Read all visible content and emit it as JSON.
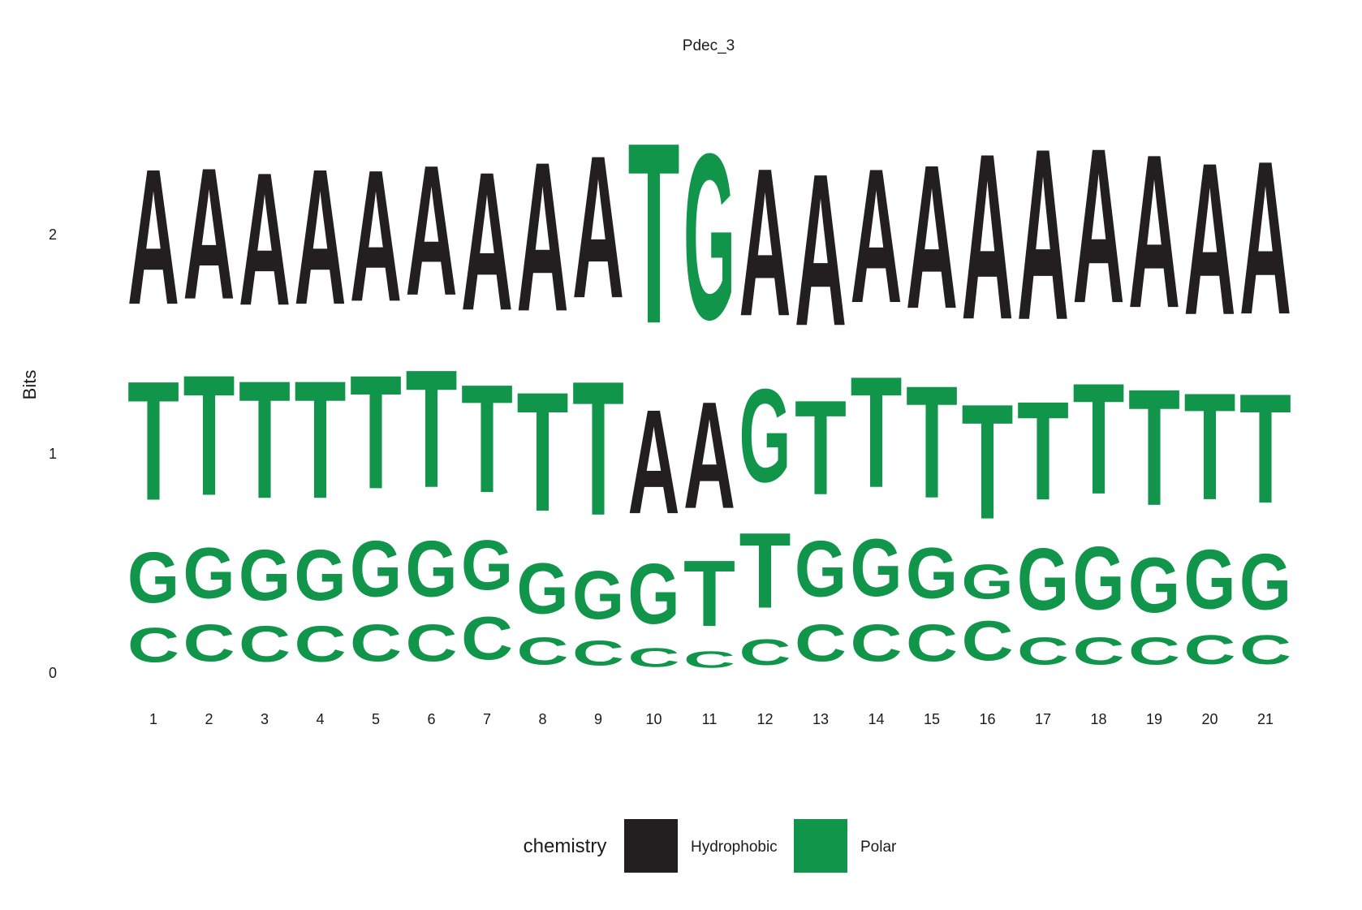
{
  "chart_data": {
    "type": "sequence-logo",
    "title": "Pdec_3",
    "ylabel": "Bits",
    "xlabel": "",
    "yticks": [
      0,
      1,
      2
    ],
    "ylim": [
      0,
      2.6
    ],
    "legend": {
      "title": "chemistry",
      "placement": "bottom",
      "entries": [
        {
          "name": "Hydrophobic",
          "color": "#231f20"
        },
        {
          "name": "Polar",
          "color": "#10954a"
        }
      ]
    },
    "letter_colors": {
      "A": "#231f20",
      "T": "#10954a",
      "G": "#10954a",
      "C": "#10954a"
    },
    "positions": [
      {
        "pos": "1",
        "stack": [
          {
            "letter": "C",
            "bits": 0.25
          },
          {
            "letter": "G",
            "bits": 0.37
          },
          {
            "letter": "T",
            "bits": 0.87
          },
          {
            "letter": "A",
            "bits": 0.99
          }
        ]
      },
      {
        "pos": "2",
        "stack": [
          {
            "letter": "C",
            "bits": 0.27
          },
          {
            "letter": "G",
            "bits": 0.37
          },
          {
            "letter": "T",
            "bits": 0.88
          },
          {
            "letter": "A",
            "bits": 0.96
          }
        ]
      },
      {
        "pos": "3",
        "stack": [
          {
            "letter": "C",
            "bits": 0.26
          },
          {
            "letter": "G",
            "bits": 0.37
          },
          {
            "letter": "T",
            "bits": 0.86
          },
          {
            "letter": "A",
            "bits": 0.97
          }
        ]
      },
      {
        "pos": "4",
        "stack": [
          {
            "letter": "C",
            "bits": 0.26
          },
          {
            "letter": "G",
            "bits": 0.37
          },
          {
            "letter": "T",
            "bits": 0.86
          },
          {
            "letter": "A",
            "bits": 0.99
          }
        ]
      },
      {
        "pos": "5",
        "stack": [
          {
            "letter": "C",
            "bits": 0.27
          },
          {
            "letter": "G",
            "bits": 0.41
          },
          {
            "letter": "T",
            "bits": 0.83
          },
          {
            "letter": "A",
            "bits": 0.96
          }
        ]
      },
      {
        "pos": "6",
        "stack": [
          {
            "letter": "C",
            "bits": 0.27
          },
          {
            "letter": "G",
            "bits": 0.41
          },
          {
            "letter": "T",
            "bits": 0.86
          },
          {
            "letter": "A",
            "bits": 0.95
          }
        ]
      },
      {
        "pos": "7",
        "stack": [
          {
            "letter": "C",
            "bits": 0.31
          },
          {
            "letter": "G",
            "bits": 0.36
          },
          {
            "letter": "T",
            "bits": 0.79
          },
          {
            "letter": "A",
            "bits": 1.01
          }
        ]
      },
      {
        "pos": "8",
        "stack": [
          {
            "letter": "C",
            "bits": 0.2
          },
          {
            "letter": "G",
            "bits": 0.37
          },
          {
            "letter": "T",
            "bits": 0.87
          },
          {
            "letter": "A",
            "bits": 1.09
          }
        ]
      },
      {
        "pos": "9",
        "stack": [
          {
            "letter": "C",
            "bits": 0.18
          },
          {
            "letter": "G",
            "bits": 0.35
          },
          {
            "letter": "T",
            "bits": 0.98
          },
          {
            "letter": "A",
            "bits": 1.04
          }
        ]
      },
      {
        "pos": "10",
        "stack": [
          {
            "letter": "C",
            "bits": 0.14
          },
          {
            "letter": "G",
            "bits": 0.44
          },
          {
            "letter": "A",
            "bits": 0.76
          },
          {
            "letter": "T",
            "bits": 1.32
          }
        ]
      },
      {
        "pos": "11",
        "stack": [
          {
            "letter": "C",
            "bits": 0.12
          },
          {
            "letter": "T",
            "bits": 0.48
          },
          {
            "letter": "A",
            "bits": 0.78
          },
          {
            "letter": "G",
            "bits": 1.21
          }
        ]
      },
      {
        "pos": "12",
        "stack": [
          {
            "letter": "C",
            "bits": 0.19
          },
          {
            "letter": "T",
            "bits": 0.55
          },
          {
            "letter": "G",
            "bits": 0.68
          },
          {
            "letter": "A",
            "bits": 1.08
          }
        ]
      },
      {
        "pos": "13",
        "stack": [
          {
            "letter": "C",
            "bits": 0.27
          },
          {
            "letter": "G",
            "bits": 0.41
          },
          {
            "letter": "T",
            "bits": 0.69
          },
          {
            "letter": "A",
            "bits": 1.11
          }
        ]
      },
      {
        "pos": "14",
        "stack": [
          {
            "letter": "C",
            "bits": 0.27
          },
          {
            "letter": "G",
            "bits": 0.42
          },
          {
            "letter": "T",
            "bits": 0.81
          },
          {
            "letter": "A",
            "bits": 0.98
          }
        ]
      },
      {
        "pos": "15",
        "stack": [
          {
            "letter": "C",
            "bits": 0.27
          },
          {
            "letter": "G",
            "bits": 0.37
          },
          {
            "letter": "T",
            "bits": 0.82
          },
          {
            "letter": "A",
            "bits": 1.05
          }
        ]
      },
      {
        "pos": "16",
        "stack": [
          {
            "letter": "C",
            "bits": 0.29
          },
          {
            "letter": "G",
            "bits": 0.25
          },
          {
            "letter": "T",
            "bits": 0.84
          },
          {
            "letter": "A",
            "bits": 1.21
          }
        ]
      },
      {
        "pos": "17",
        "stack": [
          {
            "letter": "C",
            "bits": 0.2
          },
          {
            "letter": "G",
            "bits": 0.45
          },
          {
            "letter": "T",
            "bits": 0.72
          },
          {
            "letter": "A",
            "bits": 1.25
          }
        ]
      },
      {
        "pos": "18",
        "stack": [
          {
            "letter": "C",
            "bits": 0.2
          },
          {
            "letter": "G",
            "bits": 0.46
          },
          {
            "letter": "T",
            "bits": 0.81
          },
          {
            "letter": "A",
            "bits": 1.13
          }
        ]
      },
      {
        "pos": "19",
        "stack": [
          {
            "letter": "C",
            "bits": 0.2
          },
          {
            "letter": "G",
            "bits": 0.4
          },
          {
            "letter": "T",
            "bits": 0.85
          },
          {
            "letter": "A",
            "bits": 1.12
          }
        ]
      },
      {
        "pos": "20",
        "stack": [
          {
            "letter": "C",
            "bits": 0.21
          },
          {
            "letter": "G",
            "bits": 0.43
          },
          {
            "letter": "T",
            "bits": 0.78
          },
          {
            "letter": "A",
            "bits": 1.11
          }
        ]
      },
      {
        "pos": "21",
        "stack": [
          {
            "letter": "C",
            "bits": 0.21
          },
          {
            "letter": "G",
            "bits": 0.41
          },
          {
            "letter": "T",
            "bits": 0.8
          },
          {
            "letter": "A",
            "bits": 1.12
          }
        ]
      }
    ]
  }
}
